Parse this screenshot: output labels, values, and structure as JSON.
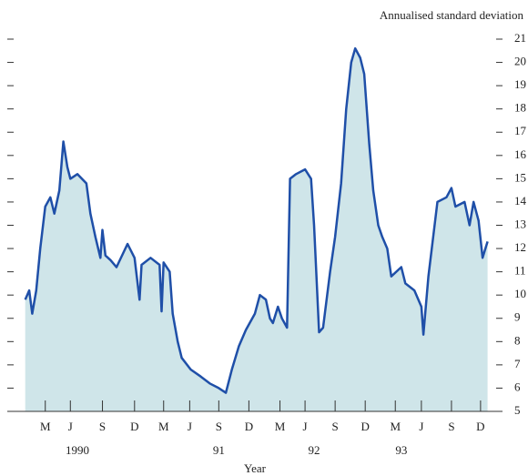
{
  "chart_data": {
    "type": "area",
    "y_label": "Annualised standard deviation",
    "x_label": "Year",
    "x": [
      0.0,
      0.4,
      0.7,
      1.1,
      1.5,
      2.0,
      2.5,
      2.9,
      3.4,
      3.8,
      4.2,
      4.5,
      5.2,
      6.1,
      6.5,
      7.0,
      7.5,
      7.7,
      8.0,
      8.5,
      9.1,
      10.2,
      10.9,
      11.4,
      11.6,
      12.5,
      13.4,
      13.6,
      13.8,
      14.4,
      14.7,
      15.2,
      15.6,
      16.5,
      17.5,
      18.4,
      19.3,
      20.0,
      20.6,
      21.3,
      22.0,
      22.9,
      23.4,
      24.0,
      24.4,
      24.7,
      25.2,
      25.6,
      26.1,
      26.4,
      27.0,
      27.9,
      28.5,
      28.8,
      29.3,
      29.7,
      30.4,
      30.9,
      31.5,
      32.0,
      32.5,
      32.9,
      33.4,
      33.8,
      34.3,
      34.7,
      35.2,
      35.6,
      36.1,
      36.5,
      37.5,
      37.9,
      38.8,
      39.5,
      39.7,
      40.2,
      41.1,
      42.0,
      42.5,
      42.9,
      43.8,
      44.3,
      44.7,
      45.2,
      45.6,
      46.1
    ],
    "series": [
      {
        "name": "Annualised standard deviation",
        "color": "#1f4fa8",
        "fill": "#cfe5e9",
        "values": [
          9.8,
          10.2,
          9.2,
          10.2,
          12,
          13.8,
          14.2,
          13.5,
          14.5,
          16.6,
          15.5,
          15.0,
          15.2,
          14.8,
          13.5,
          12.5,
          11.6,
          12.8,
          11.7,
          11.5,
          11.2,
          12.2,
          11.6,
          9.8,
          11.3,
          11.6,
          11.3,
          9.3,
          11.4,
          11.0,
          9.2,
          8.0,
          7.3,
          6.8,
          6.5,
          6.2,
          6.0,
          5.8,
          6.8,
          7.8,
          8.5,
          9.2,
          10.0,
          9.8,
          9.0,
          8.8,
          9.5,
          9.0,
          8.6,
          15.0,
          15.2,
          15.4,
          15.0,
          13,
          8.4,
          8.6,
          11.0,
          12.5,
          14.8,
          18,
          20.0,
          20.6,
          20.2,
          19.5,
          16.5,
          14.5,
          13.0,
          12.5,
          12.0,
          10.8,
          11.2,
          10.5,
          10.2,
          9.5,
          8.3,
          10.8,
          14.0,
          14.2,
          14.6,
          13.8,
          14.0,
          13.0,
          14.0,
          13.2,
          11.6,
          12.3
        ]
      }
    ],
    "xlim": [
      -0.7,
      46.5
    ],
    "xticks": [
      {
        "value": 2,
        "label": "M"
      },
      {
        "value": 4.5,
        "label": "J"
      },
      {
        "value": 7.7,
        "label": "S"
      },
      {
        "value": 10.9,
        "label": "D"
      },
      {
        "value": 13.8,
        "label": "M"
      },
      {
        "value": 16.4,
        "label": "J"
      },
      {
        "value": 19.3,
        "label": "S"
      },
      {
        "value": 22.3,
        "label": "D"
      },
      {
        "value": 25.4,
        "label": "M"
      },
      {
        "value": 27.9,
        "label": "J"
      },
      {
        "value": 30.9,
        "label": "S"
      },
      {
        "value": 33.9,
        "label": "D"
      },
      {
        "value": 36.9,
        "label": "M"
      },
      {
        "value": 39.5,
        "label": "J"
      },
      {
        "value": 42.5,
        "label": "S"
      },
      {
        "value": 45.4,
        "label": "D"
      }
    ],
    "year_ticks": [
      {
        "value": 5.2,
        "label": "1990"
      },
      {
        "value": 19.3,
        "label": "91"
      },
      {
        "value": 28.8,
        "label": "92"
      },
      {
        "value": 37.5,
        "label": "93"
      }
    ],
    "ylim": [
      5,
      21
    ],
    "yticks": [
      5,
      6,
      7,
      8,
      9,
      10,
      11,
      12,
      13,
      14,
      15,
      16,
      17,
      18,
      19,
      20,
      21
    ]
  }
}
